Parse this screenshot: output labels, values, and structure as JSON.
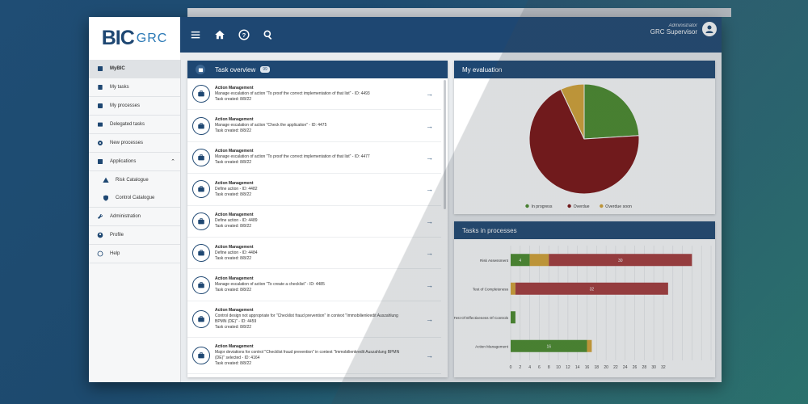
{
  "logo": {
    "bic": "BIC",
    "grc": "GRC"
  },
  "header": {
    "user_role": "Administrator",
    "user_name": "GRC Supervisor"
  },
  "sidebar": {
    "items": [
      {
        "label": "MyBIC",
        "icon": "home-icon"
      },
      {
        "label": "My tasks",
        "icon": "tasks-icon"
      },
      {
        "label": "My processes",
        "icon": "processes-icon"
      },
      {
        "label": "Delegated tasks",
        "icon": "delegated-icon"
      },
      {
        "label": "New processes",
        "icon": "gear-icon"
      },
      {
        "label": "Applications",
        "icon": "applications-icon"
      },
      {
        "label": "Risk Catalogue",
        "icon": "warning-icon"
      },
      {
        "label": "Control Catalogue",
        "icon": "shield-icon"
      },
      {
        "label": "Administration",
        "icon": "wrench-icon"
      },
      {
        "label": "Profile",
        "icon": "user-icon"
      },
      {
        "label": "Help",
        "icon": "help-icon"
      }
    ]
  },
  "task_overview": {
    "title": "Task overview",
    "count": "99",
    "tasks": [
      {
        "title": "Action Management",
        "desc": "Manage escalation of action \"To proof the correct implementation of that list\" - ID: 4493",
        "created": "Task created: 8/8/22"
      },
      {
        "title": "Action Management",
        "desc": "Manage escalation of action \"Check the application\" - ID: 4475",
        "created": "Task created: 8/8/22"
      },
      {
        "title": "Action Management",
        "desc": "Manage escalation of action \"To proof the correct implementation of that list\" - ID: 4477",
        "created": "Task created: 8/8/22"
      },
      {
        "title": "Action Management",
        "desc": "Define action - ID: 4482",
        "created": "Task created: 8/8/22"
      },
      {
        "title": "Action Management",
        "desc": "Define action - ID: 4489",
        "created": "Task created: 8/8/22"
      },
      {
        "title": "Action Management",
        "desc": "Define action - ID: 4484",
        "created": "Task created: 8/8/22"
      },
      {
        "title": "Action Management",
        "desc": "Manage escalation of action \"To create a checklist\" - ID: 4485",
        "created": "Task created: 8/8/22"
      },
      {
        "title": "Action Management",
        "desc": "Control design not appropriate for \"Checklist fraud prevention\" in context \"Immobilienkredit Auszahlung BPMN (DE)\" - ID: 4459",
        "created": "Task created: 8/8/22"
      },
      {
        "title": "Action Management",
        "desc": "Major deviations for control \"Checklist fraud prevention\" in context \"Immobilienkredit Auszahlung BPMN (DE)\" selected - ID: 4164",
        "created": "Task created: 8/8/22"
      }
    ]
  },
  "evaluation": {
    "title": "My evaluation",
    "chart_data": {
      "type": "pie",
      "labels": [
        "In progress",
        "Overdue",
        "Overdue soon"
      ],
      "values": [
        24,
        69,
        7
      ],
      "colors": [
        "#4a8c2a",
        "#7b1010",
        "#d8a534"
      ],
      "legend": "bottom"
    }
  },
  "processes": {
    "title": "Tasks in processes",
    "chart_data": {
      "type": "bar",
      "orientation": "horizontal",
      "stacked": true,
      "categories": [
        "Risk Assessment",
        "Test of Completeness",
        "Test Of Effectiveness Of Controls",
        "Action Management"
      ],
      "series": [
        {
          "values": [
            4,
            0,
            1,
            16
          ],
          "color": "#4a8c2a"
        },
        {
          "values": [
            4,
            1,
            0,
            1
          ],
          "color": "#d8a534"
        },
        {
          "values": [
            30,
            32,
            0,
            0
          ],
          "color": "#a83a3a"
        }
      ],
      "data_labels": [
        [
          "4",
          "",
          "30"
        ],
        [
          "",
          "",
          "32"
        ],
        [
          "",
          "",
          ""
        ],
        [
          "16",
          "",
          ""
        ]
      ],
      "xlim": [
        0,
        42
      ],
      "xticks": [
        "0",
        "2",
        "4",
        "6",
        "8",
        "10",
        "12",
        "14",
        "16",
        "18",
        "20",
        "22",
        "24",
        "26",
        "28",
        "30",
        "32"
      ]
    }
  }
}
